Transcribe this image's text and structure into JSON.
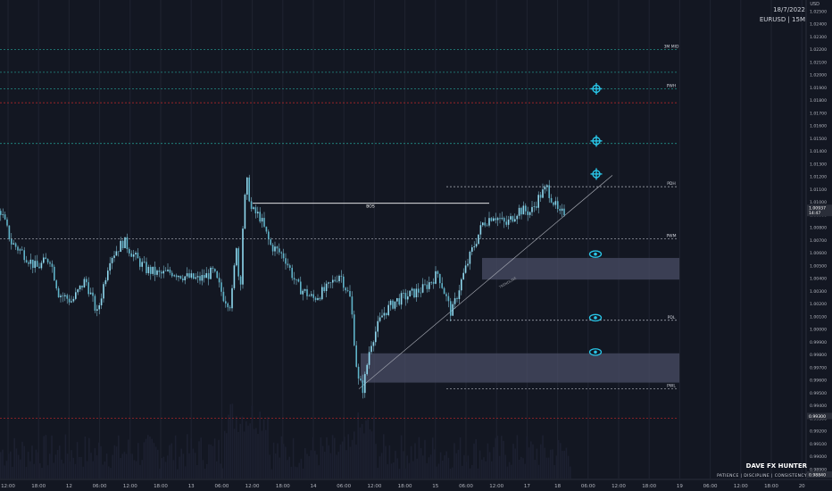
{
  "header": {
    "date": "18/7/2022",
    "symbol": "EURUSD | 15M",
    "currency": "USD"
  },
  "watermark": {
    "brand": "DAVE FX HUNTER",
    "tagline": "PATIENCE  |  DISCIPLINE  |  CONSISTENCY"
  },
  "colors": {
    "background": "#131722",
    "grid": "#1f2330",
    "candle": "#8fd8ee",
    "green_level": "#26a69a",
    "red_level": "#c62828",
    "zone": "#4a4d65",
    "target": "#29c6e8",
    "eye": "#29c6e8",
    "price_axis_text": "#b2b5be"
  },
  "chart_data": {
    "type": "candlestick",
    "symbol": "EURUSD",
    "timeframe": "15M",
    "ylim": [
      0.9884,
      1.0256
    ],
    "y_ticks": [
      "1.02500",
      "1.02400",
      "1.02300",
      "1.02200",
      "1.02100",
      "1.02000",
      "1.01900",
      "1.01800",
      "1.01700",
      "1.01600",
      "1.01500",
      "1.01400",
      "1.01300",
      "1.01200",
      "1.01100",
      "1.01000",
      "1.00900",
      "1.00800",
      "1.00700",
      "1.00600",
      "1.00500",
      "1.00400",
      "1.00300",
      "1.00200",
      "1.00100",
      "1.00000",
      "0.99900",
      "0.99800",
      "0.99700",
      "0.99600",
      "0.99500",
      "0.99400",
      "0.99300",
      "0.99200",
      "0.99100",
      "0.99000",
      "0.98900",
      "0.98800"
    ],
    "price_markers": [
      {
        "value": "1.00937",
        "sub": "14:47"
      },
      {
        "value": "0.99300"
      },
      {
        "value": "0.98840"
      }
    ],
    "x_ticks": [
      "12:00",
      "18:00",
      "12",
      "06:00",
      "12:00",
      "18:00",
      "13",
      "06:00",
      "12:00",
      "18:00",
      "14",
      "06:00",
      "12:00",
      "18:00",
      "15",
      "06:00",
      "12:00",
      "17",
      "18",
      "06:00",
      "12:00",
      "18:00",
      "19",
      "06:00",
      "12:00",
      "18:00",
      "20"
    ],
    "close_path": [
      [
        0,
        1.0093
      ],
      [
        12,
        1.0068
      ],
      [
        25,
        1.006
      ],
      [
        40,
        1.0048
      ],
      [
        55,
        1.0056
      ],
      [
        65,
        1.0028
      ],
      [
        80,
        1.0022
      ],
      [
        95,
        1.0039
      ],
      [
        108,
        1.0012
      ],
      [
        122,
        1.0056
      ],
      [
        138,
        1.0069
      ],
      [
        150,
        1.0057
      ],
      [
        163,
        1.0047
      ],
      [
        178,
        1.0043
      ],
      [
        193,
        1.0045
      ],
      [
        208,
        1.0041
      ],
      [
        222,
        1.0039
      ],
      [
        238,
        1.0045
      ],
      [
        250,
        1.0025
      ],
      [
        258,
        1.0019
      ],
      [
        264,
        1.0067
      ],
      [
        268,
        1.0026
      ],
      [
        272,
        1.0094
      ],
      [
        276,
        1.0115
      ],
      [
        281,
        1.0093
      ],
      [
        290,
        1.0089
      ],
      [
        302,
        1.0066
      ],
      [
        318,
        1.0057
      ],
      [
        332,
        1.0034
      ],
      [
        350,
        1.0024
      ],
      [
        366,
        1.0032
      ],
      [
        380,
        1.0044
      ],
      [
        392,
        1.0023
      ],
      [
        400,
        0.996
      ],
      [
        406,
        0.9953
      ],
      [
        414,
        0.9988
      ],
      [
        428,
        1.0012
      ],
      [
        442,
        1.0022
      ],
      [
        458,
        1.0027
      ],
      [
        474,
        1.0032
      ],
      [
        490,
        1.0044
      ],
      [
        505,
        1.0012
      ],
      [
        515,
        1.0036
      ],
      [
        528,
        1.0062
      ],
      [
        540,
        1.0083
      ],
      [
        552,
        1.009
      ],
      [
        566,
        1.0082
      ],
      [
        580,
        1.0094
      ],
      [
        594,
        1.0092
      ],
      [
        604,
        1.0105
      ],
      [
        612,
        1.0111
      ],
      [
        620,
        1.0099
      ],
      [
        626,
        1.0089
      ],
      [
        632,
        1.0093
      ]
    ],
    "levels": [
      {
        "label": "3M MID",
        "value": 1.022,
        "color": "#26a69a"
      },
      {
        "label": "",
        "value": 1.0202,
        "color": "#26a69a"
      },
      {
        "label": "PWH",
        "value": 1.0189,
        "color": "#26a69a"
      },
      {
        "label": "",
        "value": 1.0178,
        "color": "#c62828"
      },
      {
        "label": "",
        "value": 1.0146,
        "color": "#26a69a"
      },
      {
        "label": "PDH",
        "value": 1.0112,
        "color": "#b2b5be"
      },
      {
        "label": "PWM",
        "value": 1.0071,
        "color": "#b2b5be"
      },
      {
        "label": "PDL",
        "value": 1.0007,
        "color": "#b2b5be"
      },
      {
        "label": "PWL",
        "value": 0.9953,
        "color": "#b2b5be"
      },
      {
        "label": "",
        "value": 0.993,
        "color": "#c62828"
      }
    ],
    "bos": {
      "label": "BOS",
      "price": 1.0099
    },
    "trendline_label": "TRENDLINE",
    "zones": [
      {
        "top": 1.0056,
        "bottom": 1.0039
      },
      {
        "top": 0.9981,
        "bottom": 0.9958
      }
    ],
    "targets": [
      1.0189,
      1.0148,
      1.0122
    ],
    "eyes": [
      1.0059,
      1.0009,
      0.9982
    ]
  }
}
